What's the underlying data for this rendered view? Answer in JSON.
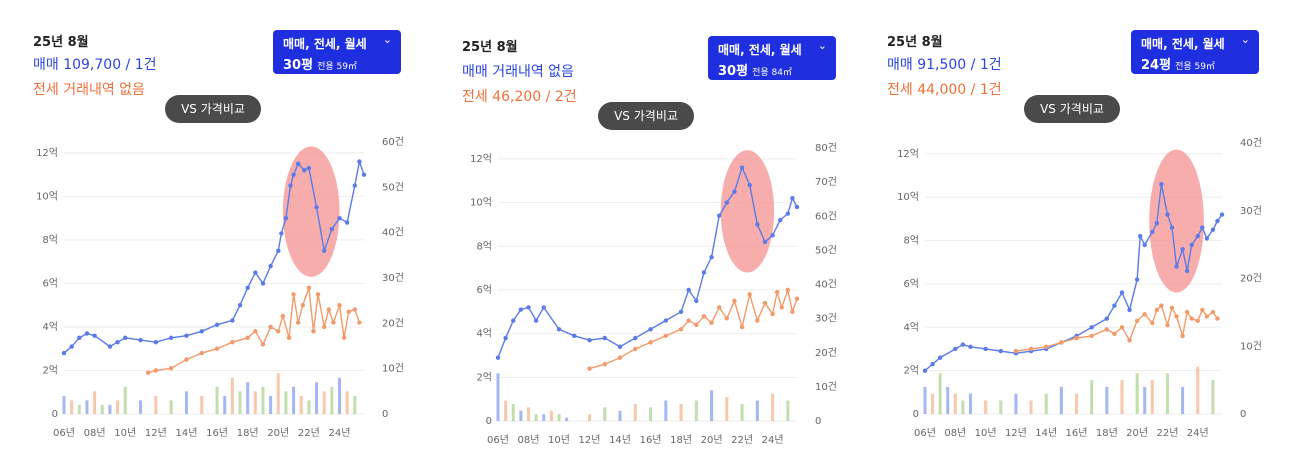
{
  "panels": [
    {
      "date": "25년 8월",
      "sale_text": "매매 109,700 / 1건",
      "jeonse_text": "전세 거래내역 없음",
      "filter": {
        "types": "매매, 전세, 월세",
        "pyeong": "30평",
        "area": "전용 59㎡"
      },
      "vs_label": "VS 가격비교"
    },
    {
      "date": "25년 8월",
      "sale_text": "매매 거래내역 없음",
      "jeonse_text": "전세 46,200 / 2건",
      "filter": {
        "types": "매매, 전세, 월세",
        "pyeong": "30평",
        "area": "전용 84㎡"
      },
      "vs_label": "VS 가격비교"
    },
    {
      "date": "25년 8월",
      "sale_text": "매매 91,500 / 1건",
      "jeonse_text": "전세 44,000 / 1건",
      "filter": {
        "types": "매매, 전세, 월세",
        "pyeong": "24평",
        "area": "전용 59㎡"
      },
      "vs_label": "VS 가격비교"
    }
  ],
  "colors": {
    "sale": "#5b7be8",
    "jeonse": "#f39a6a",
    "monthly": "#8cc56a",
    "highlight": "#f58a8a",
    "filter_bg": "#1f2fe0",
    "vs_bg": "#4a4a4a"
  },
  "chart_data": [
    {
      "type": "line",
      "x_ticks": [
        "06년",
        "08년",
        "10년",
        "12년",
        "14년",
        "16년",
        "18년",
        "20년",
        "22년",
        "24년"
      ],
      "x_range": [
        2006,
        2025.6
      ],
      "y_left_ticks": [
        "0",
        "2억",
        "4억",
        "6억",
        "8억",
        "10억",
        "12억"
      ],
      "y_left_range": [
        0,
        12.5
      ],
      "y_right_ticks": [
        "0",
        "10건",
        "20건",
        "30건",
        "40건",
        "50건",
        "60건"
      ],
      "y_right_range": [
        0,
        60
      ],
      "highlight": {
        "x_from": 2020.3,
        "x_to": 2024.0,
        "y_center": 9.3,
        "y_half": 3.0
      },
      "series": [
        {
          "key": "sale",
          "x": [
            2006,
            2006.5,
            2007,
            2007.5,
            2008,
            2009,
            2009.5,
            2010,
            2011,
            2012,
            2013,
            2014,
            2015,
            2016,
            2017,
            2017.5,
            2018,
            2018.5,
            2019,
            2019.5,
            2020,
            2020.2,
            2020.5,
            2020.8,
            2021,
            2021.3,
            2021.7,
            2022,
            2022.5,
            2023,
            2023.5,
            2024,
            2024.5,
            2025,
            2025.3,
            2025.6
          ],
          "y": [
            2.8,
            3.1,
            3.5,
            3.7,
            3.6,
            3.1,
            3.3,
            3.5,
            3.4,
            3.3,
            3.5,
            3.6,
            3.8,
            4.1,
            4.3,
            5.0,
            5.8,
            6.5,
            6.0,
            6.8,
            7.5,
            8.3,
            9.0,
            10.5,
            11.0,
            11.5,
            11.2,
            11.3,
            9.5,
            7.5,
            8.5,
            9.0,
            8.8,
            10.5,
            11.6,
            11.0
          ]
        },
        {
          "key": "jeonse",
          "x": [
            2011.5,
            2012,
            2013,
            2014,
            2015,
            2016,
            2017,
            2018,
            2018.5,
            2019,
            2019.5,
            2020,
            2020.3,
            2020.7,
            2021,
            2021.3,
            2021.6,
            2022,
            2022.3,
            2022.6,
            2023,
            2023.3,
            2023.6,
            2024,
            2024.3,
            2024.6,
            2025,
            2025.3
          ],
          "y": [
            1.9,
            2.0,
            2.1,
            2.5,
            2.8,
            3.0,
            3.3,
            3.5,
            3.8,
            3.2,
            4.0,
            3.8,
            4.5,
            3.5,
            5.5,
            4.2,
            5.0,
            5.8,
            3.8,
            5.5,
            4.0,
            4.8,
            4.2,
            5.0,
            3.5,
            4.7,
            4.8,
            4.2
          ]
        }
      ],
      "counts": {
        "key": "volume",
        "x": [
          2006,
          2006.5,
          2007,
          2007.5,
          2008,
          2008.5,
          2009,
          2009.5,
          2010,
          2011,
          2012,
          2013,
          2014,
          2015,
          2016,
          2016.5,
          2017,
          2017.5,
          2018,
          2018.5,
          2019,
          2019.5,
          2020,
          2020.5,
          2021,
          2021.5,
          2022,
          2022.5,
          2023,
          2023.5,
          2024,
          2024.5,
          2025
        ],
        "y": [
          4,
          3,
          2,
          3,
          5,
          2,
          2,
          3,
          6,
          3,
          4,
          3,
          5,
          4,
          6,
          4,
          8,
          5,
          7,
          5,
          6,
          4,
          9,
          5,
          6,
          4,
          3,
          7,
          5,
          6,
          8,
          5,
          4
        ]
      }
    },
    {
      "type": "line",
      "x_ticks": [
        "06년",
        "08년",
        "10년",
        "12년",
        "14년",
        "16년",
        "18년",
        "20년",
        "22년",
        "24년"
      ],
      "x_range": [
        2006,
        2025.6
      ],
      "y_left_ticks": [
        "0",
        "2억",
        "4억",
        "6억",
        "8억",
        "10억",
        "12억"
      ],
      "y_left_range": [
        0,
        12.5
      ],
      "y_right_ticks": [
        "0",
        "10건",
        "20건",
        "30건",
        "40건",
        "50건",
        "60건",
        "70건",
        "80건"
      ],
      "y_right_range": [
        0,
        80
      ],
      "highlight": {
        "x_from": 2020.6,
        "x_to": 2024.1,
        "y_center": 9.6,
        "y_half": 2.8
      },
      "series": [
        {
          "key": "sale",
          "x": [
            2006,
            2006.5,
            2007,
            2007.5,
            2008,
            2008.5,
            2009,
            2010,
            2011,
            2012,
            2013,
            2014,
            2015,
            2016,
            2017,
            2018,
            2018.5,
            2019,
            2019.5,
            2020,
            2020.5,
            2021,
            2021.5,
            2022,
            2022.5,
            2023,
            2023.5,
            2024,
            2024.5,
            2025,
            2025.3,
            2025.6
          ],
          "y": [
            2.9,
            3.8,
            4.6,
            5.1,
            5.2,
            4.6,
            5.2,
            4.2,
            3.9,
            3.7,
            3.8,
            3.4,
            3.8,
            4.2,
            4.6,
            5.0,
            6.0,
            5.5,
            6.8,
            7.5,
            9.4,
            10.0,
            10.5,
            11.6,
            10.8,
            9.0,
            8.2,
            8.5,
            9.2,
            9.5,
            10.2,
            9.8
          ]
        },
        {
          "key": "jeonse",
          "x": [
            2012,
            2013,
            2014,
            2015,
            2016,
            2017,
            2018,
            2018.5,
            2019,
            2019.5,
            2020,
            2020.5,
            2021,
            2021.5,
            2022,
            2022.5,
            2023,
            2023.5,
            2024,
            2024.3,
            2024.6,
            2025,
            2025.3,
            2025.6
          ],
          "y": [
            2.4,
            2.6,
            2.9,
            3.3,
            3.6,
            3.9,
            4.2,
            4.6,
            4.4,
            4.8,
            4.5,
            5.2,
            4.7,
            5.5,
            4.3,
            5.8,
            4.6,
            5.4,
            4.9,
            5.9,
            5.2,
            6.0,
            5.0,
            5.6
          ]
        }
      ],
      "counts": {
        "key": "volume",
        "x": [
          2006,
          2006.5,
          2007,
          2007.5,
          2008,
          2008.5,
          2009,
          2009.5,
          2010,
          2010.5,
          2012,
          2013,
          2014,
          2015,
          2016,
          2017,
          2018,
          2019,
          2020,
          2021,
          2022,
          2023,
          2024,
          2025
        ],
        "y": [
          14,
          6,
          5,
          3,
          4,
          2,
          2,
          3,
          2,
          1,
          2,
          4,
          3,
          5,
          4,
          6,
          5,
          6,
          9,
          7,
          5,
          6,
          8,
          6
        ]
      }
    },
    {
      "type": "line",
      "x_ticks": [
        "06년",
        "08년",
        "10년",
        "12년",
        "14년",
        "16년",
        "18년",
        "20년",
        "22년",
        "24년"
      ],
      "x_range": [
        2006,
        2025.6
      ],
      "y_left_ticks": [
        "0",
        "2억",
        "4억",
        "6억",
        "8억",
        "10억",
        "12억"
      ],
      "y_left_range": [
        0,
        12.5
      ],
      "y_right_ticks": [
        "0",
        "10건",
        "20건",
        "30건",
        "40건"
      ],
      "y_right_range": [
        0,
        40
      ],
      "highlight": {
        "x_from": 2020.8,
        "x_to": 2024.4,
        "y_center": 8.9,
        "y_half": 3.3
      },
      "series": [
        {
          "key": "sale",
          "x": [
            2006,
            2006.5,
            2007,
            2008,
            2008.5,
            2009,
            2010,
            2011,
            2012,
            2013,
            2014,
            2015,
            2016,
            2017,
            2018,
            2018.5,
            2019,
            2019.5,
            2020,
            2020.2,
            2020.5,
            2021,
            2021.3,
            2021.6,
            2022,
            2022.3,
            2022.6,
            2023,
            2023.3,
            2023.6,
            2024,
            2024.3,
            2024.6,
            2025,
            2025.3,
            2025.6
          ],
          "y": [
            2.0,
            2.3,
            2.6,
            3.0,
            3.2,
            3.1,
            3.0,
            2.9,
            2.8,
            2.9,
            3.0,
            3.3,
            3.6,
            4.0,
            4.4,
            5.0,
            5.6,
            4.8,
            6.2,
            8.2,
            7.8,
            8.4,
            8.8,
            10.6,
            9.2,
            8.6,
            6.8,
            7.6,
            6.6,
            7.8,
            8.2,
            8.6,
            8.1,
            8.5,
            8.9,
            9.2
          ]
        },
        {
          "key": "jeonse",
          "x": [
            2012,
            2013,
            2014,
            2015,
            2016,
            2017,
            2018,
            2018.5,
            2019,
            2019.5,
            2020,
            2020.5,
            2021,
            2021.3,
            2021.6,
            2022,
            2022.3,
            2022.6,
            2023,
            2023.3,
            2023.6,
            2024,
            2024.3,
            2024.6,
            2025,
            2025.3
          ],
          "y": [
            2.9,
            3.0,
            3.1,
            3.3,
            3.5,
            3.6,
            3.9,
            3.7,
            4.0,
            3.4,
            4.3,
            4.6,
            4.2,
            4.8,
            5.0,
            4.1,
            4.9,
            4.5,
            3.6,
            4.7,
            4.4,
            4.3,
            4.8,
            4.5,
            4.7,
            4.4
          ]
        }
      ],
      "counts": {
        "key": "volume",
        "x": [
          2006,
          2006.5,
          2007,
          2007.5,
          2008,
          2008.5,
          2009,
          2010,
          2011,
          2012,
          2013,
          2014,
          2015,
          2016,
          2017,
          2018,
          2019,
          2020,
          2020.5,
          2021,
          2022,
          2023,
          2024,
          2025
        ],
        "y": [
          4,
          3,
          6,
          4,
          3,
          2,
          3,
          2,
          2,
          3,
          2,
          3,
          4,
          3,
          5,
          4,
          5,
          6,
          4,
          5,
          6,
          4,
          7,
          5
        ]
      }
    }
  ]
}
